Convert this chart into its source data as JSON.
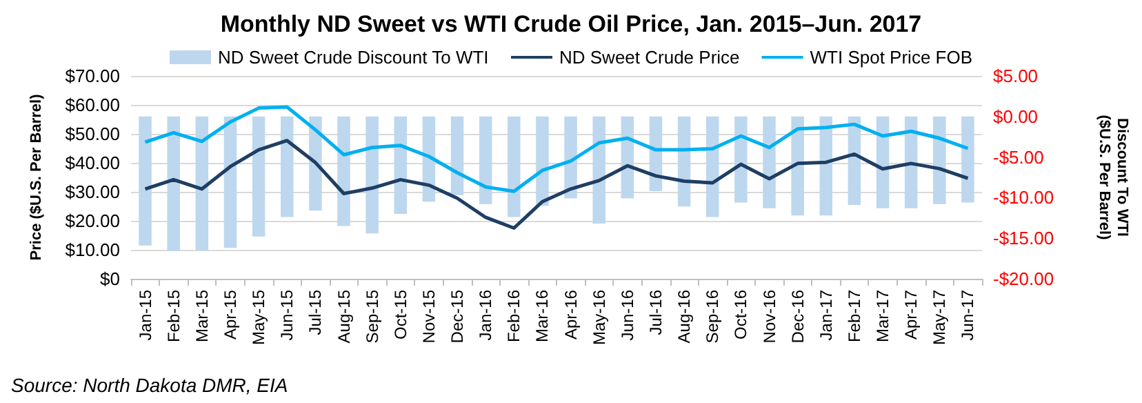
{
  "chart_data": {
    "type": "line",
    "title": "Monthly ND Sweet vs WTI Crude Oil Price, Jan. 2015–Jun. 2017",
    "ylabel": "Price ($U.S. Per Barrel)",
    "y2label": "Discount To WTI ($U.S. Per Barrel)",
    "annotations": [
      "Source: North Dakota DMR, EIA"
    ],
    "categories": [
      "Jan-15",
      "Feb-15",
      "Mar-15",
      "Apr-15",
      "May-15",
      "Jun-15",
      "Jul-15",
      "Aug-15",
      "Sep-15",
      "Oct-15",
      "Nov-15",
      "Dec-15",
      "Jan-16",
      "Feb-16",
      "Mar-16",
      "Apr-16",
      "May-16",
      "Jun-16",
      "Jul-16",
      "Aug-16",
      "Sep-16",
      "Oct-16",
      "Nov-16",
      "Dec-16",
      "Jan-17",
      "Feb-17",
      "Mar-17",
      "Apr-17",
      "May-17",
      "Jun-17"
    ],
    "series": [
      {
        "name": "ND Sweet Crude Discount To WTI",
        "type": "bar",
        "axis": "y2",
        "color": "#bdd7ee",
        "values": [
          -15.9,
          -16.6,
          -16.5,
          -16.2,
          -14.8,
          -12.4,
          -11.6,
          -13.5,
          -14.4,
          -12.0,
          -10.5,
          -9.7,
          -10.8,
          -12.4,
          -11.0,
          -10.1,
          -13.2,
          -10.1,
          -9.2,
          -11.1,
          -12.4,
          -10.6,
          -11.3,
          -12.2,
          -12.2,
          -10.9,
          -11.3,
          -11.3,
          -10.8,
          -10.6
        ]
      },
      {
        "name": "ND Sweet Crude Price",
        "color": "#1f3e64",
        "values": [
          31.0,
          34.2,
          31.0,
          38.7,
          44.5,
          47.7,
          40.1,
          29.4,
          31.3,
          34.2,
          32.3,
          27.8,
          21.2,
          17.5,
          26.6,
          31.0,
          33.9,
          39.0,
          35.5,
          33.7,
          33.1,
          39.5,
          34.5,
          39.8,
          40.2,
          43.0,
          37.9,
          39.8,
          38.0,
          34.7
        ]
      },
      {
        "name": "WTI Spot Price FOB",
        "color": "#00b0f0",
        "values": [
          47.2,
          50.4,
          47.4,
          54.1,
          58.9,
          59.3,
          51.4,
          42.8,
          45.3,
          46.0,
          42.2,
          36.6,
          31.7,
          30.2,
          37.4,
          40.6,
          46.9,
          48.5,
          44.5,
          44.5,
          44.9,
          49.3,
          45.3,
          51.7,
          52.2,
          53.3,
          49.3,
          50.9,
          48.5,
          45.0
        ]
      }
    ],
    "ylim": [
      0,
      70
    ],
    "yticks": [
      {
        "value": 0,
        "label": "$0"
      },
      {
        "value": 10,
        "label": "$10.00"
      },
      {
        "value": 20,
        "label": "$20.00"
      },
      {
        "value": 30,
        "label": "$30.00"
      },
      {
        "value": 40,
        "label": "$40.00"
      },
      {
        "value": 50,
        "label": "$50.00"
      },
      {
        "value": 60,
        "label": "$60.00"
      },
      {
        "value": 70,
        "label": "$70.00"
      }
    ],
    "y2lim": [
      -20,
      5
    ],
    "y2ticks": [
      {
        "value": -20,
        "label": "-$20.00"
      },
      {
        "value": -15,
        "label": "-$15.00"
      },
      {
        "value": -10,
        "label": "-$10.00"
      },
      {
        "value": -5,
        "label": "-$5.00"
      },
      {
        "value": 0,
        "label": "$0.00"
      },
      {
        "value": 5,
        "label": "$5.00"
      }
    ],
    "grid": "y",
    "legend": "top",
    "marker": "none",
    "line_style": "solid"
  }
}
